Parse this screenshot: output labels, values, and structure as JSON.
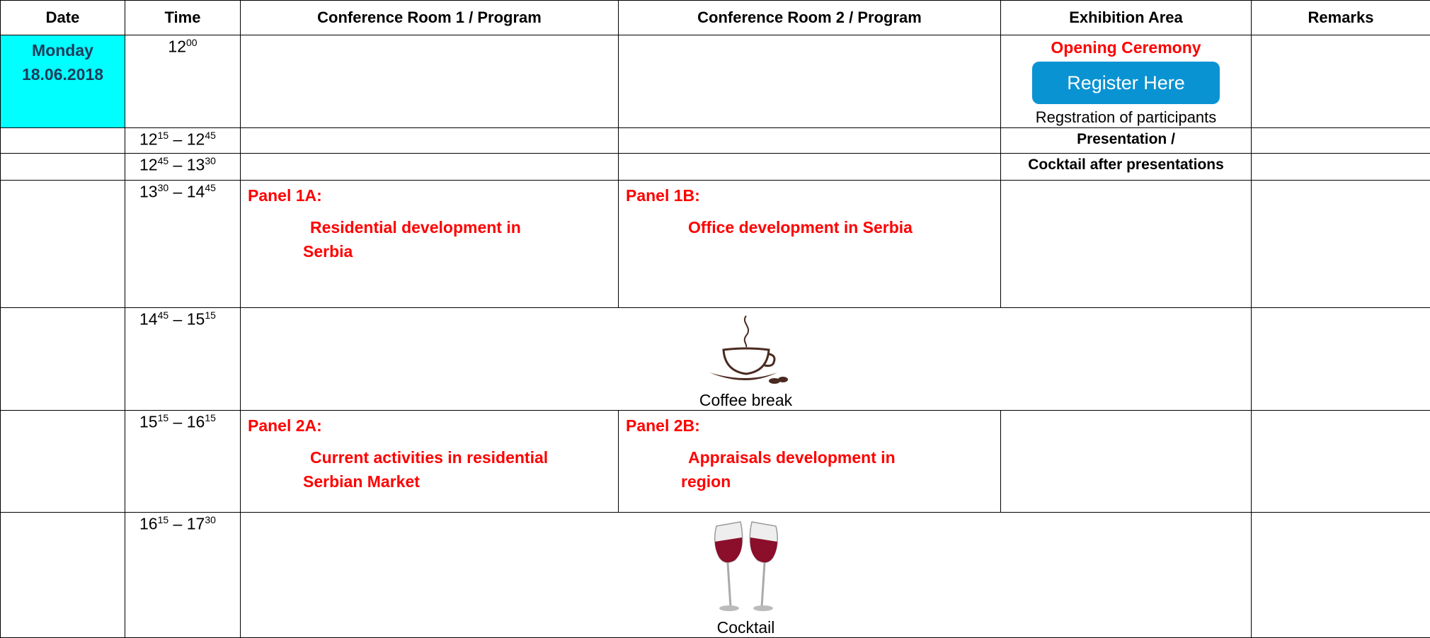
{
  "header": [
    "Date",
    "Time",
    "Conference Room  1  / Program",
    "Conference Room  2  / Program",
    "Exhibition Area",
    "Remarks"
  ],
  "rows": [
    {
      "date": [
        "Monday",
        "18.06.2018"
      ],
      "time": [
        {
          "base": "12",
          "sup": "00"
        }
      ],
      "exhibition": {
        "title": "Opening Ceremony",
        "button": "Register Here",
        "note": "Regstration of participants"
      }
    },
    {
      "time": [
        {
          "base": "12",
          "sup": "15"
        },
        {
          "base": " – 12",
          "sup": "45"
        }
      ],
      "exhibition": {
        "text": "Presentation /"
      }
    },
    {
      "time": [
        {
          "base": "12",
          "sup": "45"
        },
        {
          "base": " – 13",
          "sup": "30"
        }
      ],
      "exhibition": {
        "text": "Cocktail after  presentations"
      }
    },
    {
      "time": [
        {
          "base": "13",
          "sup": "30"
        },
        {
          "base": " – 14",
          "sup": "45"
        }
      ],
      "room1": {
        "panel": "Panel 1A:",
        "title": "Residential development in Serbia"
      },
      "room2": {
        "panel": "Panel 1B:",
        "title": "Office development in Serbia"
      }
    },
    {
      "time": [
        {
          "base": "14",
          "sup": "45"
        },
        {
          "base": " – 15",
          "sup": "15"
        }
      ],
      "coffee_break": "Coffee break"
    },
    {
      "time": [
        {
          "base": "15",
          "sup": "15"
        },
        {
          "base": " – 16",
          "sup": "15"
        }
      ],
      "room1": {
        "panel": "Panel 2A:",
        "title": "Current activities in residential Serbian Market"
      },
      "room2": {
        "panel": "Panel 2B:",
        "title": "Appraisals development  in region"
      }
    },
    {
      "time": [
        {
          "base": "16",
          "sup": "15"
        },
        {
          "base": " – 17",
          "sup": "30"
        }
      ],
      "cocktail": "Cocktail"
    }
  ]
}
